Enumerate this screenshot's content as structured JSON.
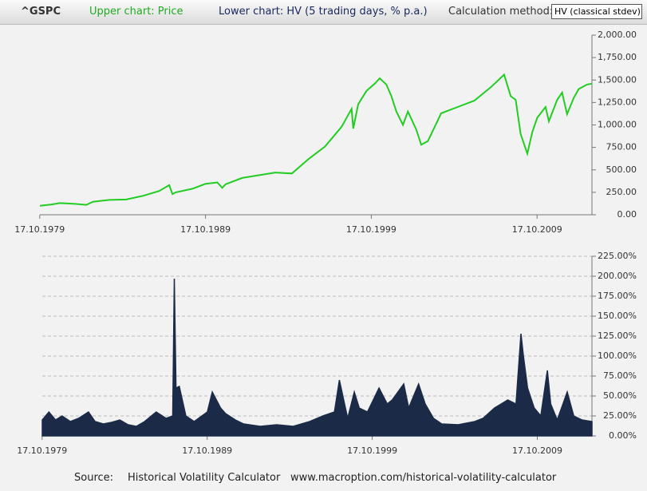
{
  "header": {
    "symbol": "^GSPC",
    "upper": "Upper chart: Price",
    "lower": "Lower chart: HV (5 trading days, % p.a.)",
    "method_label": "Calculation method:",
    "method_value": "HV (classical stdev)"
  },
  "chart_data": [
    {
      "type": "line",
      "color": "#22cc22",
      "grid": false,
      "xlim": [
        1979.8,
        2013.1
      ],
      "ylim": [
        0,
        2000
      ],
      "xticks": [
        {
          "value": 1979.79,
          "label": "17.10.1979"
        },
        {
          "value": 1989.79,
          "label": "17.10.1989"
        },
        {
          "value": 1999.79,
          "label": "17.10.1999"
        },
        {
          "value": 2009.79,
          "label": "17.10.2009"
        }
      ],
      "yticks": [
        {
          "value": 0,
          "label": "0.00"
        },
        {
          "value": 250,
          "label": "250.00"
        },
        {
          "value": 500,
          "label": "500.00"
        },
        {
          "value": 750,
          "label": "750.00"
        },
        {
          "value": 1000,
          "label": "1,000.00"
        },
        {
          "value": 1250,
          "label": "1,250.00"
        },
        {
          "value": 1500,
          "label": "1,500.00"
        },
        {
          "value": 1750,
          "label": "1,750.00"
        },
        {
          "value": 2000,
          "label": "2,000.00"
        }
      ],
      "x": [
        1979.8,
        1980.5,
        1981,
        1981.5,
        1982,
        1982.6,
        1983,
        1984,
        1985,
        1986,
        1987,
        1987.6,
        1987.8,
        1988,
        1989,
        1989.8,
        1990.5,
        1990.8,
        1991,
        1992,
        1993,
        1994,
        1995,
        1996,
        1997,
        1998,
        1998.6,
        1998.7,
        1999,
        1999.5,
        2000,
        2000.3,
        2000.7,
        2001,
        2001.3,
        2001.7,
        2002,
        2002.5,
        2002.8,
        2003.2,
        2003.8,
        2004,
        2005,
        2006,
        2007,
        2007.8,
        2008.2,
        2008.5,
        2008.8,
        2009.2,
        2009.5,
        2009.8,
        2010.3,
        2010.5,
        2011,
        2011.3,
        2011.6,
        2012,
        2012.3,
        2012.8,
        2013.1
      ],
      "values": [
        100,
        115,
        130,
        125,
        120,
        110,
        145,
        165,
        170,
        210,
        265,
        330,
        230,
        250,
        290,
        345,
        360,
        300,
        340,
        410,
        440,
        470,
        460,
        620,
        760,
        980,
        1180,
        960,
        1230,
        1380,
        1460,
        1520,
        1450,
        1320,
        1150,
        1000,
        1150,
        950,
        780,
        820,
        1050,
        1130,
        1200,
        1270,
        1420,
        1560,
        1320,
        1280,
        900,
        680,
        920,
        1080,
        1200,
        1040,
        1280,
        1360,
        1120,
        1300,
        1400,
        1450,
        1460
      ]
    },
    {
      "type": "area",
      "color": "#1b2a47",
      "grid": true,
      "xlim": [
        1979.8,
        2013.1
      ],
      "ylim": [
        0,
        225
      ],
      "xticks": [
        {
          "value": 1979.79,
          "label": "17.10.1979"
        },
        {
          "value": 1989.79,
          "label": "17.10.1989"
        },
        {
          "value": 1999.79,
          "label": "17.10.1999"
        },
        {
          "value": 2009.79,
          "label": "17.10.2009"
        }
      ],
      "yticks": [
        {
          "value": 0,
          "label": "0.00%"
        },
        {
          "value": 25,
          "label": "25.00%"
        },
        {
          "value": 50,
          "label": "50.00%"
        },
        {
          "value": 75,
          "label": "75.00%"
        },
        {
          "value": 100,
          "label": "100.00%"
        },
        {
          "value": 125,
          "label": "125.00%"
        },
        {
          "value": 150,
          "label": "150.00%"
        },
        {
          "value": 175,
          "label": "175.00%"
        },
        {
          "value": 200,
          "label": "200.00%"
        },
        {
          "value": 225,
          "label": "225.00%"
        }
      ],
      "x": [
        1979.8,
        1980.2,
        1980.6,
        1981,
        1981.5,
        1982,
        1982.6,
        1983,
        1983.5,
        1984,
        1984.5,
        1985,
        1985.5,
        1986,
        1986.7,
        1987.3,
        1987.7,
        1987.8,
        1987.9,
        1988.1,
        1988.5,
        1989,
        1989.8,
        1990.1,
        1990.6,
        1990.9,
        1991.5,
        1992,
        1993,
        1994,
        1995,
        1996,
        1996.8,
        1997.5,
        1997.8,
        1998.3,
        1998.7,
        1999,
        1999.5,
        2000.2,
        2000.7,
        2001,
        2001.7,
        2002,
        2002.6,
        2003,
        2003.5,
        2004,
        2005,
        2006,
        2006.5,
        2007.2,
        2007.6,
        2008,
        2008.5,
        2008.8,
        2008.95,
        2009.2,
        2009.6,
        2010,
        2010.4,
        2010.6,
        2011,
        2011.6,
        2012,
        2012.5,
        2013.1
      ],
      "values": [
        20,
        30,
        20,
        25,
        18,
        22,
        30,
        18,
        15,
        17,
        20,
        14,
        12,
        18,
        30,
        22,
        25,
        197,
        60,
        62,
        25,
        18,
        30,
        55,
        35,
        28,
        20,
        15,
        12,
        14,
        12,
        18,
        25,
        30,
        70,
        22,
        55,
        35,
        30,
        60,
        40,
        45,
        65,
        35,
        65,
        40,
        22,
        15,
        14,
        18,
        22,
        35,
        40,
        45,
        40,
        128,
        100,
        60,
        35,
        25,
        82,
        40,
        20,
        55,
        25,
        20,
        18
      ]
    }
  ],
  "footer": {
    "source_label": "Source:",
    "source_name": "Historical Volatility Calculator",
    "url": "www.macroption.com/historical-volatility-calculator"
  }
}
